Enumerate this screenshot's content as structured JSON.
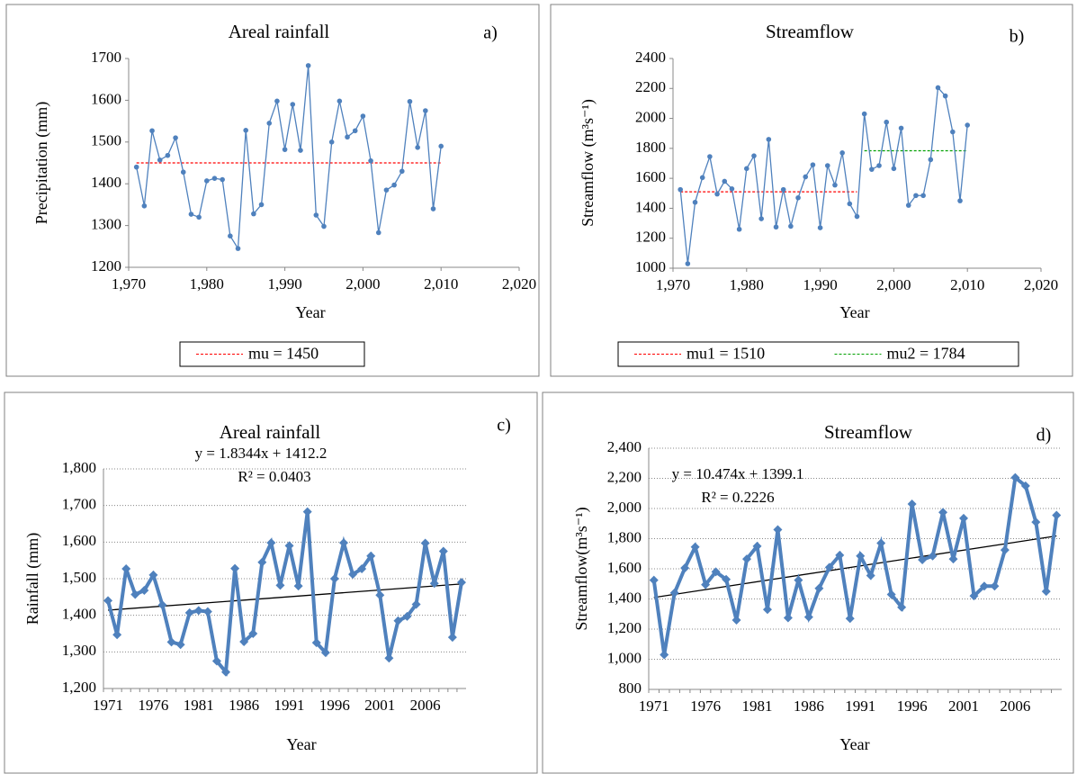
{
  "chart_data": [
    {
      "type": "line",
      "title": "Areal rainfall",
      "panel_label": "a)",
      "x_label": "Year",
      "y_label": "Precipitation (mm)",
      "x": [
        1971,
        1972,
        1973,
        1974,
        1975,
        1976,
        1977,
        1978,
        1979,
        1980,
        1981,
        1982,
        1983,
        1984,
        1985,
        1986,
        1987,
        1988,
        1989,
        1990,
        1991,
        1992,
        1993,
        1994,
        1995,
        1996,
        1997,
        1998,
        1999,
        2000,
        2001,
        2002,
        2003,
        2004,
        2005,
        2006,
        2007,
        2008,
        2009,
        2010
      ],
      "values": [
        1440,
        1347,
        1527,
        1457,
        1468,
        1510,
        1428,
        1327,
        1320,
        1407,
        1413,
        1410,
        1275,
        1245,
        1528,
        1328,
        1350,
        1545,
        1598,
        1482,
        1590,
        1480,
        1683,
        1325,
        1298,
        1500,
        1598,
        1512,
        1527,
        1562,
        1455,
        1283,
        1385,
        1397,
        1430,
        1597,
        1487,
        1575,
        1340,
        1490
      ],
      "color": "#4f81bd",
      "xlim": [
        1970,
        2020
      ],
      "xticks": [
        {
          "value": 1970,
          "label": "1,970"
        },
        {
          "value": 1980,
          "label": "1,980"
        },
        {
          "value": 1990,
          "label": "1,990"
        },
        {
          "value": 2000,
          "label": "2,000"
        },
        {
          "value": 2010,
          "label": "2,010"
        },
        {
          "value": 2020,
          "label": "2,020"
        }
      ],
      "ylim": [
        1200,
        1700
      ],
      "yticks": [
        1200,
        1300,
        1400,
        1500,
        1600,
        1700
      ],
      "mean_lines": [
        {
          "name": "mu = 1450",
          "color": "#ff0000",
          "x": [
            1971,
            2010
          ],
          "values": [
            1450,
            1450
          ]
        }
      ],
      "legend": "bottom",
      "grid": false
    },
    {
      "type": "line",
      "title": "Streamflow",
      "panel_label": "b)",
      "x_label": "Year",
      "y_label": "Streamflow (m³s⁻¹)",
      "x": [
        1971,
        1972,
        1973,
        1974,
        1975,
        1976,
        1977,
        1978,
        1979,
        1980,
        1981,
        1982,
        1983,
        1984,
        1985,
        1986,
        1987,
        1988,
        1989,
        1990,
        1991,
        1992,
        1993,
        1994,
        1995,
        1996,
        1997,
        1998,
        1999,
        2000,
        2001,
        2002,
        2003,
        2004,
        2005,
        2006,
        2007,
        2008,
        2009,
        2010
      ],
      "values": [
        1525,
        1030,
        1440,
        1605,
        1745,
        1495,
        1580,
        1530,
        1260,
        1665,
        1750,
        1330,
        1860,
        1275,
        1525,
        1280,
        1470,
        1610,
        1690,
        1270,
        1685,
        1555,
        1770,
        1430,
        1345,
        2030,
        1660,
        1685,
        1975,
        1665,
        1935,
        1420,
        1485,
        1485,
        1725,
        2205,
        2150,
        1910,
        1450,
        1955
      ],
      "color": "#4f81bd",
      "xlim": [
        1970,
        2020
      ],
      "xticks": [
        {
          "value": 1970,
          "label": "1,970"
        },
        {
          "value": 1980,
          "label": "1,980"
        },
        {
          "value": 1990,
          "label": "1,990"
        },
        {
          "value": 2000,
          "label": "2,000"
        },
        {
          "value": 2010,
          "label": "2,010"
        },
        {
          "value": 2020,
          "label": "2,020"
        }
      ],
      "ylim": [
        1000,
        2400
      ],
      "yticks": [
        1000,
        1200,
        1400,
        1600,
        1800,
        2000,
        2200,
        2400
      ],
      "mean_lines": [
        {
          "name": "mu1 = 1510",
          "color": "#ff0000",
          "x": [
            1971,
            1995
          ],
          "values": [
            1510,
            1510
          ]
        },
        {
          "name": "mu2 = 1784",
          "color": "#00a000",
          "x": [
            1996,
            2010
          ],
          "values": [
            1784,
            1784
          ]
        }
      ],
      "legend": "bottom",
      "grid": false
    },
    {
      "type": "line",
      "title": "Areal rainfall",
      "panel_label": "c)",
      "x_label": "Year",
      "y_label": "Rainfall (mm)",
      "categories": [
        "1971",
        null,
        null,
        null,
        null,
        "1976",
        null,
        null,
        null,
        null,
        "1981",
        null,
        null,
        null,
        null,
        "1986",
        null,
        null,
        null,
        null,
        "1991",
        null,
        null,
        null,
        null,
        "1996",
        null,
        null,
        null,
        null,
        "2001",
        null,
        null,
        null,
        null,
        "2006",
        null,
        null,
        null,
        null
      ],
      "values": [
        1440,
        1347,
        1527,
        1457,
        1468,
        1510,
        1428,
        1327,
        1320,
        1407,
        1413,
        1410,
        1275,
        1245,
        1528,
        1328,
        1350,
        1545,
        1598,
        1482,
        1590,
        1480,
        1683,
        1325,
        1298,
        1500,
        1598,
        1512,
        1527,
        1562,
        1455,
        1283,
        1385,
        1397,
        1430,
        1597,
        1487,
        1575,
        1340,
        1490
      ],
      "color": "#4f81bd",
      "marker": "diamond",
      "ylim": [
        1200,
        1800
      ],
      "yticks": [
        {
          "value": 1200,
          "label": "1,200"
        },
        {
          "value": 1300,
          "label": "1,300"
        },
        {
          "value": 1400,
          "label": "1,400"
        },
        {
          "value": 1500,
          "label": "1,500"
        },
        {
          "value": 1600,
          "label": "1,600"
        },
        {
          "value": 1700,
          "label": "1,700"
        },
        {
          "value": 1800,
          "label": "1,800"
        }
      ],
      "trendline": {
        "values": [
          1414.0,
          1485.6
        ],
        "color": "#000000",
        "equation": "y = 1.8344x + 1412.2",
        "r2": "R² = 0.0403"
      },
      "grid": true
    },
    {
      "type": "line",
      "title": "Streamflow",
      "panel_label": "d)",
      "x_label": "Year",
      "y_label": "Streamflow(m³s⁻¹)",
      "categories": [
        "1971",
        null,
        null,
        null,
        null,
        "1976",
        null,
        null,
        null,
        null,
        "1981",
        null,
        null,
        null,
        null,
        "1986",
        null,
        null,
        null,
        null,
        "1991",
        null,
        null,
        null,
        null,
        "1996",
        null,
        null,
        null,
        null,
        "2001",
        null,
        null,
        null,
        null,
        "2006",
        null,
        null,
        null,
        null
      ],
      "values": [
        1525,
        1030,
        1440,
        1605,
        1745,
        1495,
        1580,
        1530,
        1260,
        1665,
        1750,
        1330,
        1860,
        1275,
        1525,
        1280,
        1470,
        1610,
        1690,
        1270,
        1685,
        1555,
        1770,
        1430,
        1345,
        2030,
        1660,
        1685,
        1975,
        1665,
        1935,
        1420,
        1485,
        1485,
        1725,
        2205,
        2150,
        1910,
        1450,
        1955
      ],
      "color": "#4f81bd",
      "marker": "diamond",
      "ylim": [
        800,
        2400
      ],
      "yticks": [
        800,
        {
          "value": 1000,
          "label": "1,000"
        },
        {
          "value": 1200,
          "label": "1,200"
        },
        {
          "value": 1400,
          "label": "1,400"
        },
        {
          "value": 1600,
          "label": "1,600"
        },
        {
          "value": 1800,
          "label": "1,800"
        },
        {
          "value": 2000,
          "label": "2,000"
        },
        {
          "value": 2200,
          "label": "2,200"
        },
        {
          "value": 2400,
          "label": "2,400"
        }
      ],
      "trendline": {
        "values": [
          1409.6,
          1818.1
        ],
        "color": "#000000",
        "equation": "y = 10.474x + 1399.1",
        "r2": "R² = 0.2226"
      },
      "grid": true
    }
  ]
}
